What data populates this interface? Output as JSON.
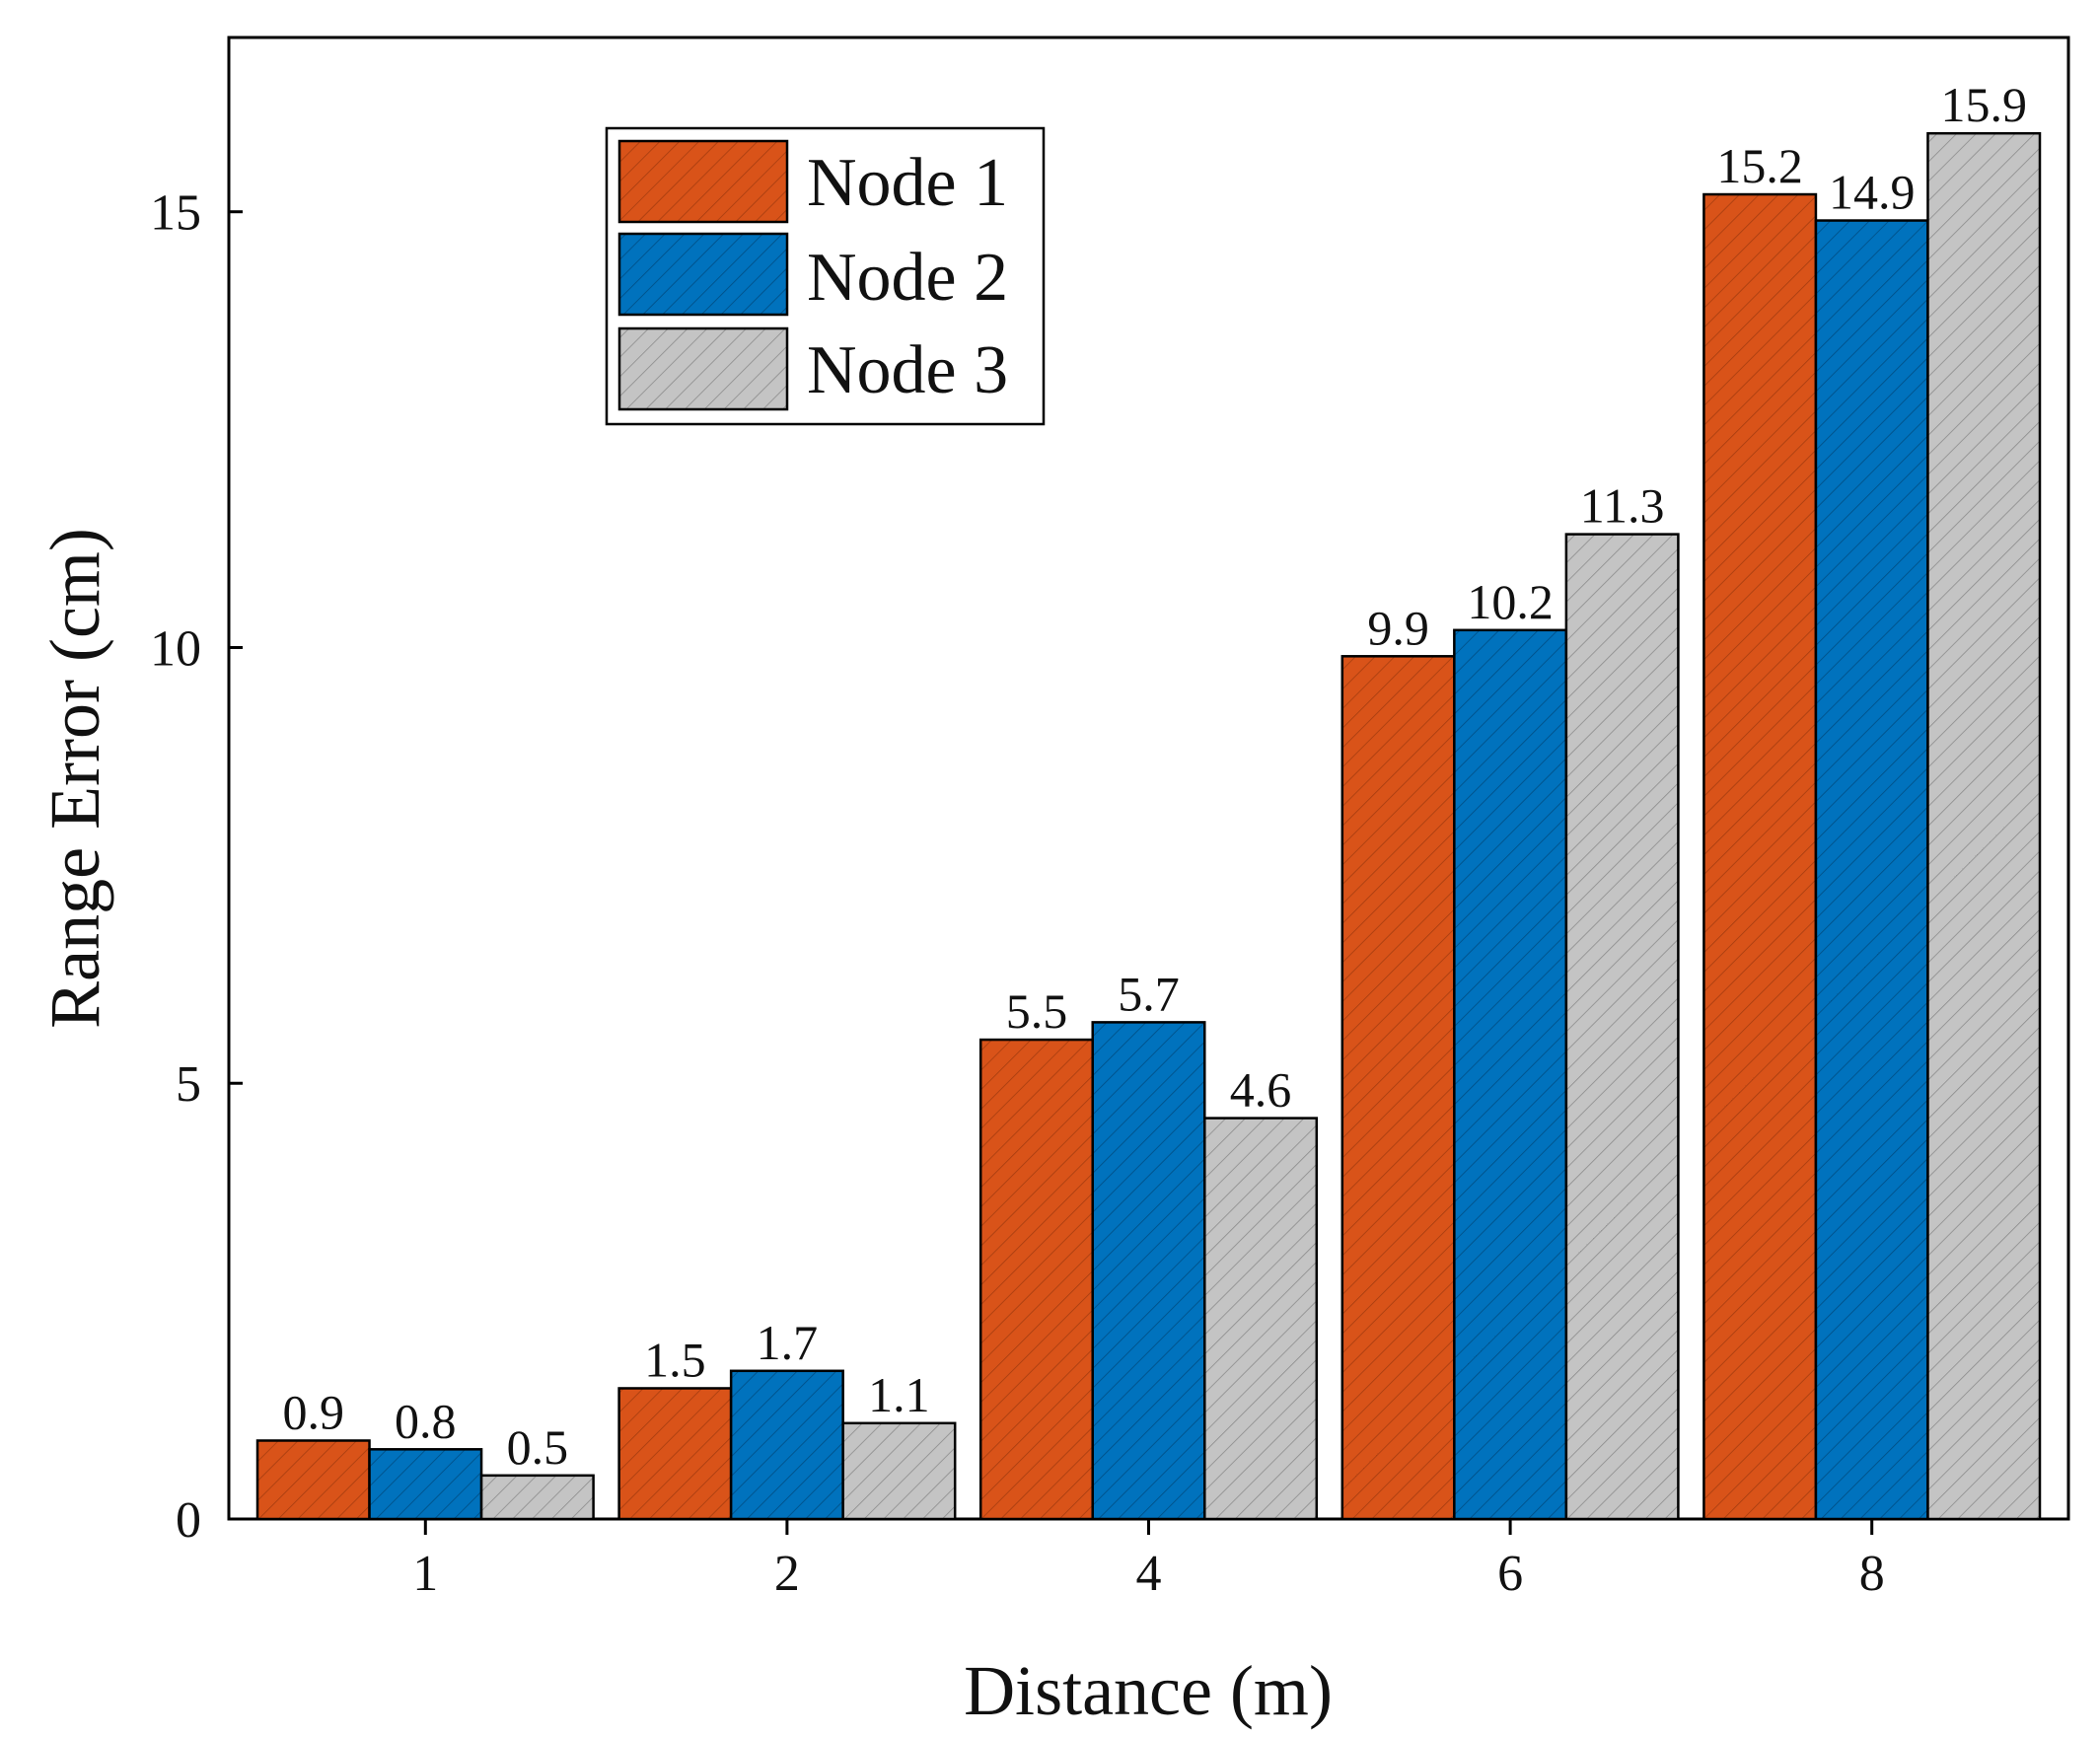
{
  "chart_data": {
    "type": "bar",
    "title": "",
    "xlabel": "Distance (m)",
    "ylabel": "Range Error (cm)",
    "categories": [
      "1",
      "2",
      "4",
      "6",
      "8"
    ],
    "series": [
      {
        "name": "Node 1",
        "values": [
          0.9,
          1.5,
          5.5,
          9.9,
          15.2
        ],
        "labels": [
          "0.9",
          "1.5",
          "5.5",
          "9.9",
          "15.2"
        ],
        "color": "#D95319",
        "pattern": "hatch-orange"
      },
      {
        "name": "Node 2",
        "values": [
          0.8,
          1.7,
          5.7,
          10.2,
          14.9
        ],
        "labels": [
          "0.8",
          "1.7",
          "5.7",
          "10.2",
          "14.9"
        ],
        "color": "#0072BD",
        "pattern": "hatch-blue"
      },
      {
        "name": "Node 3",
        "values": [
          0.5,
          1.1,
          4.6,
          11.3,
          15.9
        ],
        "labels": [
          "0.5",
          "1.1",
          "4.6",
          "11.3",
          "15.9"
        ],
        "color": "#C0C0C0",
        "pattern": "hatch-gray"
      }
    ],
    "ylim": [
      0,
      17
    ],
    "yticks": [
      0,
      5,
      10,
      15
    ],
    "grid": false,
    "legend_position": "top-left"
  }
}
